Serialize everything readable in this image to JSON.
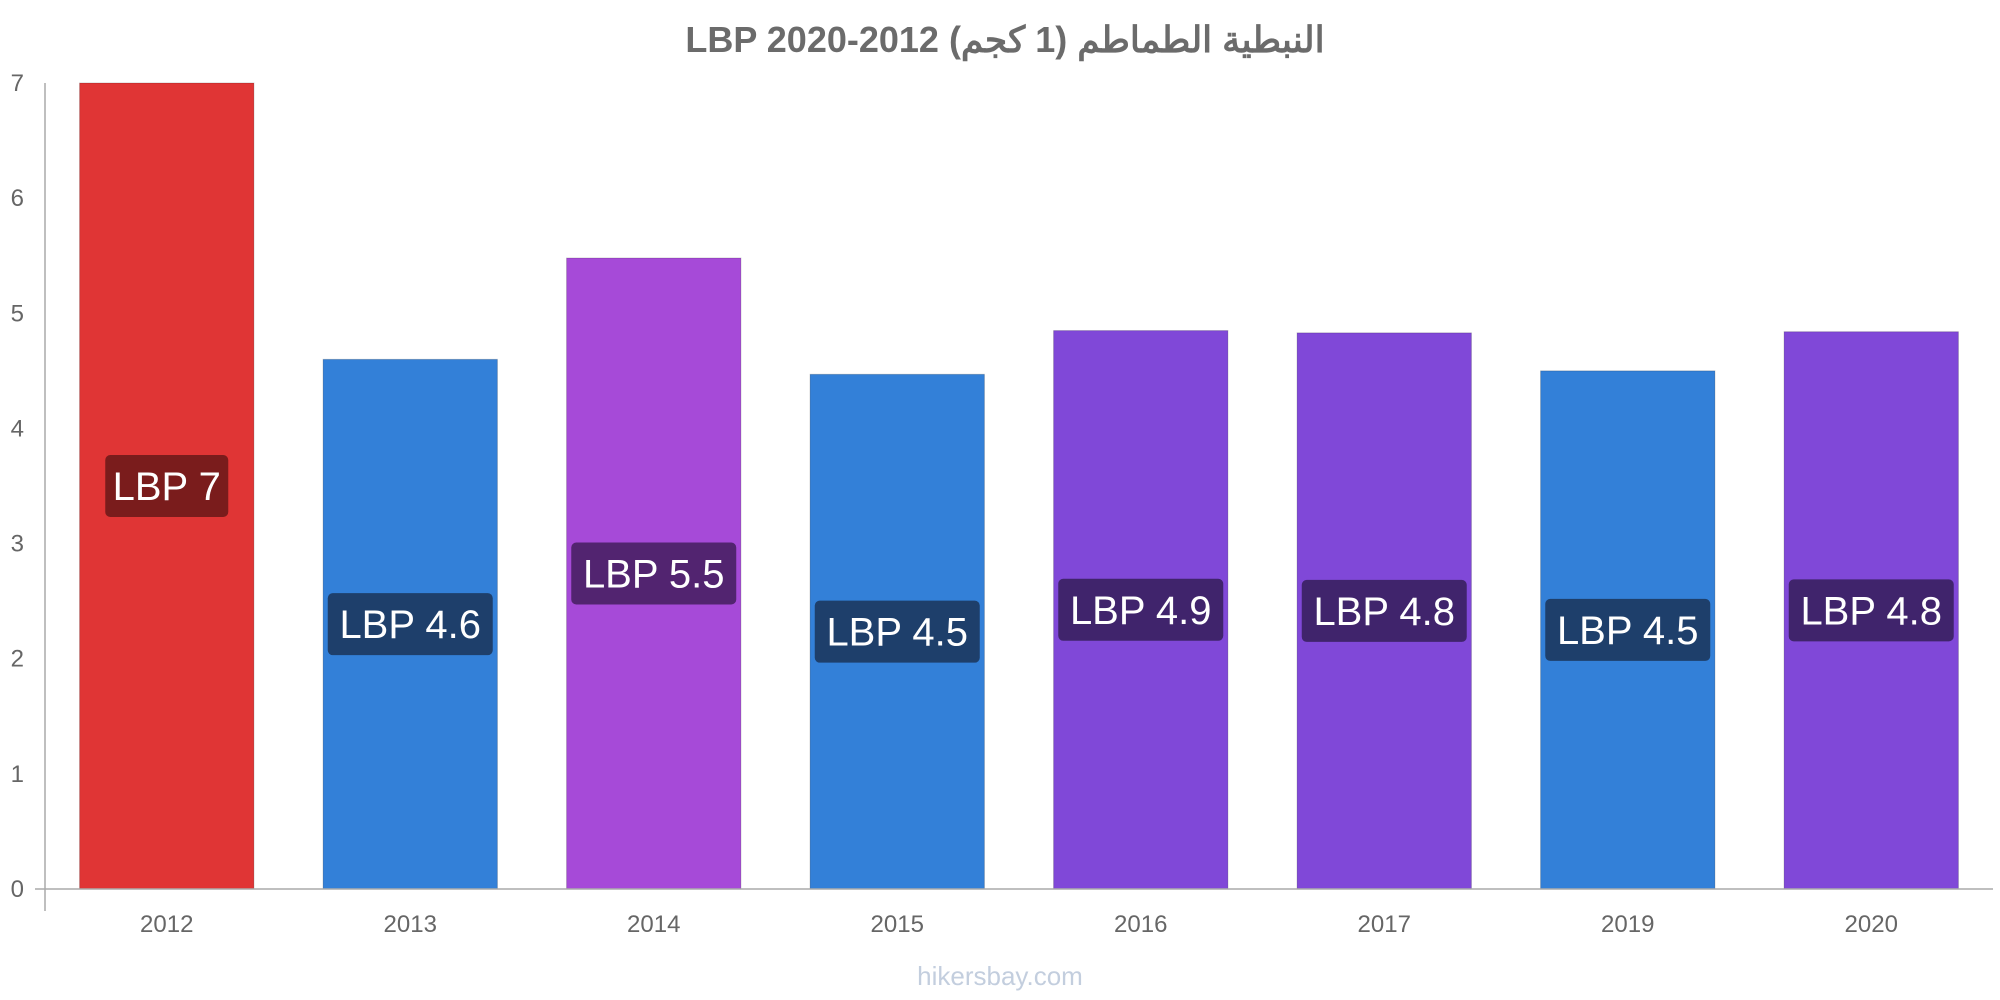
{
  "chart_data": {
    "type": "bar",
    "title": "النبطية الطماطم (1 كجم) LBP 2020-2012",
    "categories": [
      "2012",
      "2013",
      "2014",
      "2015",
      "2016",
      "2017",
      "2019",
      "2020"
    ],
    "values": [
      7.0,
      4.6,
      5.48,
      4.47,
      4.85,
      4.83,
      4.5,
      4.84
    ],
    "data_labels": [
      "LBP 7",
      "LBP 4.6",
      "LBP 5.5",
      "LBP 4.5",
      "LBP 4.9",
      "LBP 4.8",
      "LBP 4.5",
      "LBP 4.8"
    ],
    "bar_colors": [
      "#e03535",
      "#3380d8",
      "#a64ad8",
      "#3380d8",
      "#8048d8",
      "#8048d8",
      "#3380d8",
      "#8048d8"
    ],
    "label_colors": [
      "#7a1c1c",
      "#1e3f6b",
      "#522470",
      "#1e3f6b",
      "#40246c",
      "#40246c",
      "#1e3f6b",
      "#40246c"
    ],
    "ylim": [
      0,
      7
    ],
    "yticks": [
      "0",
      "1",
      "2",
      "3",
      "4",
      "5",
      "6",
      "7"
    ],
    "xlabel": "",
    "ylabel": "",
    "grid": false,
    "legend": "none"
  },
  "watermark": "hikersbay.com"
}
